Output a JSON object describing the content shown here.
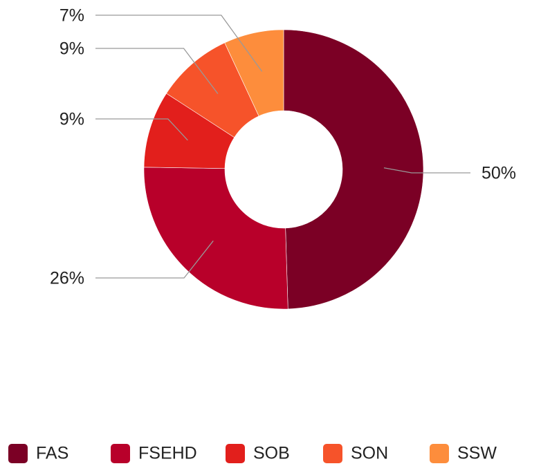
{
  "chart_data": {
    "type": "donut",
    "categories": [
      "FAS",
      "FSEHD",
      "SOB",
      "SON",
      "SSW"
    ],
    "values": [
      50,
      26,
      9,
      9,
      7
    ],
    "value_labels": [
      "50%",
      "26%",
      "9%",
      "9%",
      "7%"
    ],
    "colors": [
      "#7b0025",
      "#b8002a",
      "#e21f1c",
      "#f6532a",
      "#fd8d3c"
    ],
    "legend": "bottom"
  }
}
